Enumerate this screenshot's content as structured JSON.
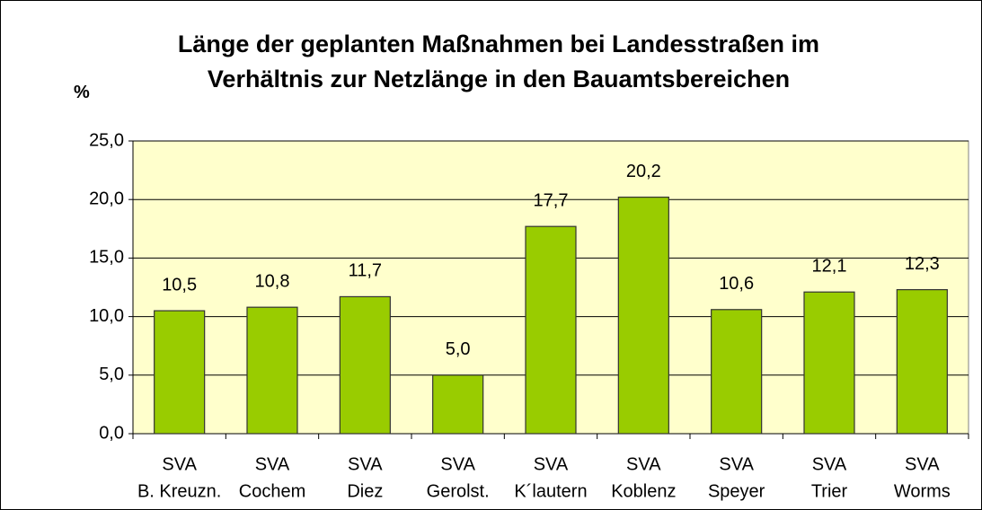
{
  "chart_data": {
    "type": "bar",
    "title": "Länge der geplanten Maßnahmen bei Landesstraßen im Verhältnis zur Netzlänge in den Bauamtsbereichen",
    "y_label": "%",
    "categories": [
      [
        "SVA",
        "B. Kreuzn."
      ],
      [
        "SVA",
        "Cochem"
      ],
      [
        "SVA",
        "Diez"
      ],
      [
        "SVA",
        "Gerolst."
      ],
      [
        "SVA",
        "K´lautern"
      ],
      [
        "SVA",
        "Koblenz"
      ],
      [
        "SVA",
        "Speyer"
      ],
      [
        "SVA",
        "Trier"
      ],
      [
        "SVA",
        "Worms"
      ]
    ],
    "values": [
      10.5,
      10.8,
      11.7,
      5.0,
      17.7,
      20.2,
      10.6,
      12.1,
      12.3
    ],
    "value_labels": [
      "10,5",
      "10,8",
      "11,7",
      "5,0",
      "17,7",
      "20,2",
      "10,6",
      "12,1",
      "12,3"
    ],
    "color": "#99cc00",
    "ylim": [
      0,
      25
    ],
    "yticks": [
      {
        "value": 0,
        "label": "0,0"
      },
      {
        "value": 5,
        "label": "5,0"
      },
      {
        "value": 10,
        "label": "10,0"
      },
      {
        "value": 15,
        "label": "15,0"
      },
      {
        "value": 20,
        "label": "20,0"
      },
      {
        "value": 25,
        "label": "25,0"
      }
    ],
    "grid": true
  }
}
